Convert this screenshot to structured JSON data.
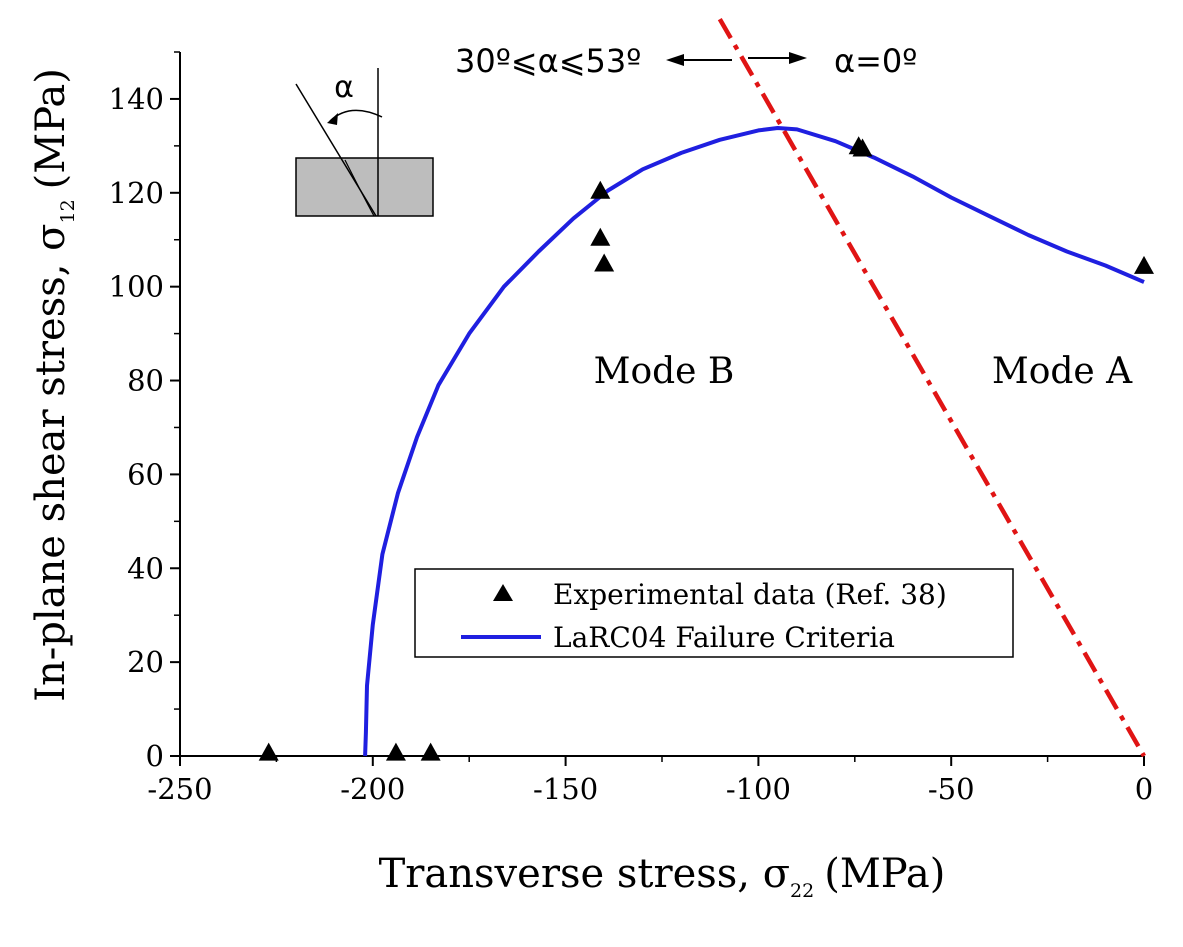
{
  "chart_data": {
    "type": "scatter",
    "xlabel_main": "Transverse stress, σ",
    "xlabel_sub": "22",
    "xlabel_unit": "(MPa)",
    "ylabel_main": "In-plane shear stress, σ",
    "ylabel_sub": "12",
    "ylabel_unit": "(MPa)",
    "xlim": [
      -250,
      0
    ],
    "ylim": [
      0,
      150
    ],
    "xticks": [
      -250,
      -200,
      -150,
      -100,
      -50,
      0
    ],
    "yticks": [
      0,
      20,
      40,
      60,
      80,
      100,
      120,
      140
    ],
    "xtick_labels": [
      "-250",
      "-200",
      "-150",
      "-100",
      "-50",
      "0"
    ],
    "ytick_labels": [
      "0",
      "20",
      "40",
      "60",
      "80",
      "100",
      "120",
      "140"
    ],
    "grid": false,
    "legend_position": "bottom-center",
    "series": [
      {
        "name": "Experimental data (Ref. 38)",
        "kind": "scatter",
        "marker": "triangle",
        "color": "#000000",
        "points": [
          [
            -227,
            0.3
          ],
          [
            -194,
            0.3
          ],
          [
            -185,
            0.3
          ],
          [
            -141,
            120
          ],
          [
            -141,
            110
          ],
          [
            -140,
            104.5
          ],
          [
            -74,
            129.5
          ],
          [
            -73,
            129
          ],
          [
            0,
            104
          ]
        ]
      },
      {
        "name": "LaRC04 Failure Criteria",
        "kind": "line",
        "color": "#1f1fe0",
        "points": [
          [
            -202,
            0
          ],
          [
            -201.8,
            5
          ],
          [
            -201.5,
            15
          ],
          [
            -200,
            28
          ],
          [
            -197.5,
            43
          ],
          [
            -193.5,
            56
          ],
          [
            -188.5,
            68
          ],
          [
            -183,
            79
          ],
          [
            -175,
            90
          ],
          [
            -166,
            100
          ],
          [
            -157,
            107.5
          ],
          [
            -148,
            114.5
          ],
          [
            -139,
            120.5
          ],
          [
            -130,
            125
          ],
          [
            -120,
            128.5
          ],
          [
            -110,
            131.3
          ],
          [
            -100,
            133.3
          ],
          [
            -95,
            133.8
          ],
          [
            -90,
            133.5
          ],
          [
            -80,
            131
          ],
          [
            -70,
            127.5
          ],
          [
            -60,
            123.5
          ],
          [
            -50,
            119
          ],
          [
            -40,
            115
          ],
          [
            -30,
            111
          ],
          [
            -20,
            107.5
          ],
          [
            -10,
            104.5
          ],
          [
            0,
            101
          ]
        ]
      },
      {
        "kind": "line",
        "style": "dash-dot",
        "color": "#e01414",
        "points": [
          [
            -110,
            157
          ],
          [
            0,
            0
          ]
        ]
      }
    ],
    "annotations": {
      "mode_b": "Mode B",
      "mode_a": "Mode A",
      "left_range": "30º⩽α⩽53º",
      "right_range": "α=0º",
      "angle_symbol": "α"
    }
  }
}
